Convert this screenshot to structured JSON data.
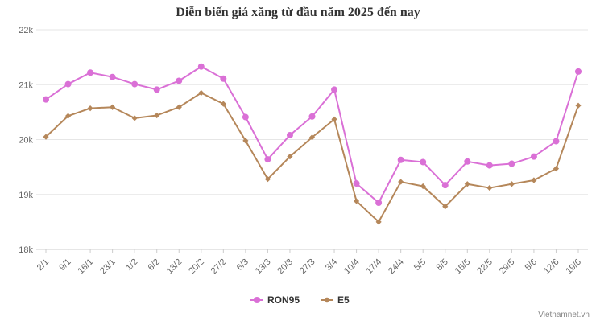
{
  "chart_data": {
    "type": "line",
    "title": "Diễn biến giá xăng từ đầu năm 2025 đến nay",
    "xlabel": "",
    "ylabel": "",
    "categories": [
      "2/1",
      "9/1",
      "16/1",
      "23/1",
      "1/2",
      "6/2",
      "13/2",
      "20/2",
      "27/2",
      "6/3",
      "13/3",
      "20/3",
      "27/3",
      "3/4",
      "10/4",
      "17/4",
      "24/4",
      "5/5",
      "8/5",
      "15/5",
      "22/5",
      "29/5",
      "5/6",
      "12/6",
      "19/6"
    ],
    "ylim": [
      18000,
      22000
    ],
    "yticks": [
      {
        "value": 18000,
        "label": "18k"
      },
      {
        "value": 19000,
        "label": "19k"
      },
      {
        "value": 20000,
        "label": "20k"
      },
      {
        "value": 21000,
        "label": "21k"
      },
      {
        "value": 22000,
        "label": "22k"
      }
    ],
    "grid": true,
    "legend_position": "bottom-center",
    "series": [
      {
        "name": "RON95",
        "color": "#da70d6",
        "marker": "circle",
        "values": [
          20730,
          21010,
          21220,
          21140,
          21010,
          20910,
          21070,
          21330,
          21110,
          20410,
          19640,
          20080,
          20420,
          20910,
          19200,
          18850,
          19630,
          19590,
          19170,
          19600,
          19530,
          19560,
          19690,
          19970,
          21240
        ]
      },
      {
        "name": "E5",
        "color": "#b5875a",
        "marker": "diamond",
        "values": [
          20050,
          20430,
          20570,
          20590,
          20390,
          20440,
          20590,
          20850,
          20650,
          19980,
          19280,
          19690,
          20040,
          20370,
          18880,
          18500,
          19230,
          19150,
          18780,
          19190,
          19120,
          19190,
          19260,
          19470,
          20620
        ]
      }
    ]
  },
  "credit": "Vietnamnet.vn"
}
